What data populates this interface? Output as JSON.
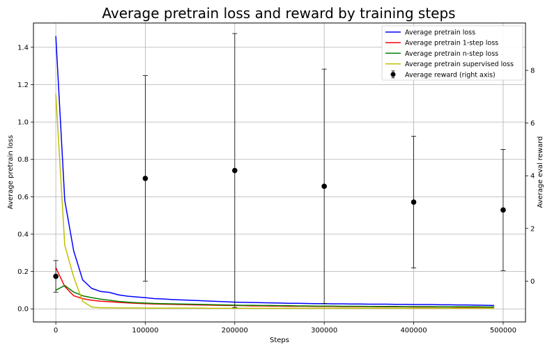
{
  "chart_data": {
    "type": "line",
    "title": "Average pretrain loss and reward by training steps",
    "xlabel": "Steps",
    "ylabel": "Average pretrain loss",
    "y2label": "Average eval reward",
    "xlim": [
      -25000,
      525000
    ],
    "ylim": [
      -0.07,
      1.53
    ],
    "y2lim": [
      -1.55,
      9.8
    ],
    "grid": true,
    "legend_position": "top-right",
    "x_ticks": [
      0,
      100000,
      200000,
      300000,
      400000,
      500000
    ],
    "x_tick_labels": [
      "0",
      "100000",
      "200000",
      "300000",
      "400000",
      "500000"
    ],
    "y_ticks": [
      0.0,
      0.2,
      0.4,
      0.6,
      0.8,
      1.0,
      1.2,
      1.4
    ],
    "y_tick_labels": [
      "0.0",
      "0.2",
      "0.4",
      "0.6",
      "0.8",
      "1.0",
      "1.2",
      "1.4"
    ],
    "y2_ticks": [
      0,
      2,
      4,
      6,
      8
    ],
    "y2_tick_labels": [
      "0",
      "2",
      "4",
      "6",
      "8"
    ],
    "x": [
      0,
      10000,
      20000,
      30000,
      40000,
      50000,
      60000,
      70000,
      80000,
      90000,
      100000,
      110000,
      120000,
      130000,
      140000,
      150000,
      160000,
      170000,
      180000,
      190000,
      200000,
      210000,
      220000,
      230000,
      240000,
      250000,
      260000,
      270000,
      280000,
      290000,
      300000,
      310000,
      320000,
      330000,
      340000,
      350000,
      360000,
      370000,
      380000,
      390000,
      400000,
      410000,
      420000,
      430000,
      440000,
      450000,
      460000,
      470000,
      480000,
      490000
    ],
    "series": [
      {
        "name": "Average pretrain loss",
        "color": "#0000ff",
        "axis": "left",
        "values": [
          1.46,
          0.58,
          0.31,
          0.155,
          0.11,
          0.093,
          0.088,
          0.075,
          0.068,
          0.064,
          0.06,
          0.055,
          0.053,
          0.05,
          0.048,
          0.046,
          0.044,
          0.042,
          0.04,
          0.038,
          0.036,
          0.035,
          0.034,
          0.033,
          0.032,
          0.031,
          0.03,
          0.03,
          0.029,
          0.028,
          0.028,
          0.027,
          0.027,
          0.026,
          0.026,
          0.025,
          0.025,
          0.025,
          0.024,
          0.024,
          0.023,
          0.023,
          0.023,
          0.022,
          0.022,
          0.021,
          0.021,
          0.02,
          0.019,
          0.018
        ]
      },
      {
        "name": "Average pretrain 1-step loss",
        "color": "#ff0000",
        "axis": "left",
        "values": [
          0.22,
          0.12,
          0.07,
          0.055,
          0.046,
          0.041,
          0.038,
          0.035,
          0.032,
          0.03,
          0.028,
          0.026,
          0.025,
          0.024,
          0.023,
          0.022,
          0.021,
          0.02,
          0.019,
          0.018,
          0.018,
          0.017,
          0.016,
          0.016,
          0.015,
          0.015,
          0.014,
          0.014,
          0.014,
          0.013,
          0.013,
          0.013,
          0.012,
          0.012,
          0.012,
          0.012,
          0.011,
          0.011,
          0.011,
          0.011,
          0.01,
          0.01,
          0.01,
          0.01,
          0.01,
          0.009,
          0.009,
          0.009,
          0.009,
          0.009
        ]
      },
      {
        "name": "Average pretrain n-step loss",
        "color": "#008000",
        "axis": "left",
        "values": [
          0.1,
          0.125,
          0.09,
          0.07,
          0.06,
          0.052,
          0.046,
          0.04,
          0.036,
          0.033,
          0.031,
          0.029,
          0.028,
          0.027,
          0.026,
          0.025,
          0.024,
          0.023,
          0.022,
          0.021,
          0.02,
          0.019,
          0.019,
          0.018,
          0.018,
          0.017,
          0.017,
          0.016,
          0.016,
          0.015,
          0.015,
          0.015,
          0.014,
          0.014,
          0.014,
          0.013,
          0.013,
          0.013,
          0.013,
          0.012,
          0.012,
          0.012,
          0.012,
          0.011,
          0.011,
          0.011,
          0.011,
          0.011,
          0.01,
          0.01
        ]
      },
      {
        "name": "Average pretrain supervised loss",
        "color": "#bfbf00",
        "axis": "left",
        "values": [
          1.15,
          0.34,
          0.17,
          0.04,
          0.01,
          0.006,
          0.006,
          0.005,
          0.005,
          0.005,
          0.004,
          0.004,
          0.004,
          0.004,
          0.004,
          0.004,
          0.004,
          0.003,
          0.003,
          0.003,
          0.003,
          0.003,
          0.003,
          0.003,
          0.003,
          0.003,
          0.003,
          0.003,
          0.003,
          0.003,
          0.003,
          0.003,
          0.003,
          0.003,
          0.003,
          0.003,
          0.003,
          0.003,
          0.003,
          0.003,
          0.003,
          0.003,
          0.003,
          0.003,
          0.003,
          0.003,
          0.003,
          0.003,
          0.003,
          0.003
        ]
      }
    ],
    "reward": {
      "name": "Average reward (right axis)",
      "axis": "right",
      "color": "#000000",
      "x": [
        0,
        100000,
        200000,
        300000,
        400000,
        500000
      ],
      "values": [
        0.18,
        3.9,
        4.2,
        3.6,
        3.0,
        2.7
      ],
      "err": [
        0.6,
        3.9,
        5.2,
        4.45,
        2.5,
        2.3
      ]
    }
  }
}
